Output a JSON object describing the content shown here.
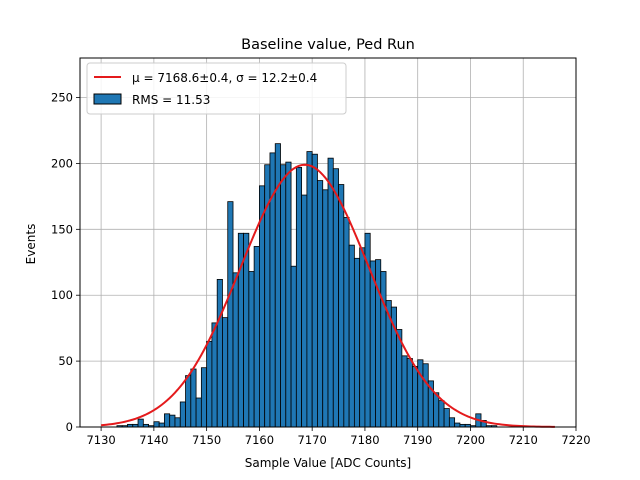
{
  "chart_data": {
    "type": "bar",
    "title": "Baseline value, Ped Run",
    "xlabel": "Sample Value [ADC Counts]",
    "ylabel": "Events",
    "xlim": [
      7126,
      7220
    ],
    "ylim": [
      0,
      280
    ],
    "xticks": [
      7130,
      7140,
      7150,
      7160,
      7170,
      7180,
      7190,
      7200,
      7210,
      7220
    ],
    "yticks": [
      0,
      50,
      100,
      150,
      200,
      250
    ],
    "grid": true,
    "legend_position": "top-left",
    "bin_width": 1,
    "series": [
      {
        "name": "RMS = 11.53",
        "kind": "histogram",
        "color": "#1f77b4",
        "edgecolor": "#000000",
        "bins_left": [
          7130,
          7131,
          7132,
          7133,
          7134,
          7135,
          7136,
          7137,
          7138,
          7139,
          7140,
          7141,
          7142,
          7143,
          7144,
          7145,
          7146,
          7147,
          7148,
          7149,
          7150,
          7151,
          7152,
          7153,
          7154,
          7155,
          7156,
          7157,
          7158,
          7159,
          7160,
          7161,
          7162,
          7163,
          7164,
          7165,
          7166,
          7167,
          7168,
          7169,
          7170,
          7171,
          7172,
          7173,
          7174,
          7175,
          7176,
          7177,
          7178,
          7179,
          7180,
          7181,
          7182,
          7183,
          7184,
          7185,
          7186,
          7187,
          7188,
          7189,
          7190,
          7191,
          7192,
          7193,
          7194,
          7195,
          7196,
          7197,
          7198,
          7199,
          7200,
          7201,
          7202,
          7203,
          7204,
          7205,
          7206,
          7207,
          7208,
          7209,
          7210,
          7211,
          7212,
          7213,
          7214,
          7215
        ],
        "values": [
          0,
          0,
          0,
          1,
          1,
          2,
          2,
          6,
          2,
          1,
          4,
          3,
          10,
          9,
          7,
          19,
          39,
          44,
          22,
          45,
          65,
          79,
          112,
          83,
          171,
          117,
          147,
          147,
          118,
          137,
          183,
          199,
          208,
          215,
          199,
          201,
          122,
          197,
          176,
          209,
          207,
          187,
          180,
          204,
          196,
          184,
          159,
          138,
          128,
          136,
          147,
          126,
          127,
          118,
          96,
          91,
          74,
          54,
          52,
          46,
          51,
          48,
          35,
          26,
          20,
          14,
          7,
          3,
          2,
          2,
          1,
          10,
          5,
          1,
          1,
          0,
          0,
          0,
          0,
          0,
          0,
          0,
          0,
          0,
          0,
          0
        ]
      },
      {
        "name": "μ = 7168.6±0.4, σ = 12.2±0.4",
        "kind": "line",
        "color": "#e41a1c",
        "model": "gaussian",
        "mu": 7168.6,
        "sigma": 12.2,
        "amplitude": 199,
        "x_range": [
          7130,
          7216
        ]
      }
    ]
  }
}
